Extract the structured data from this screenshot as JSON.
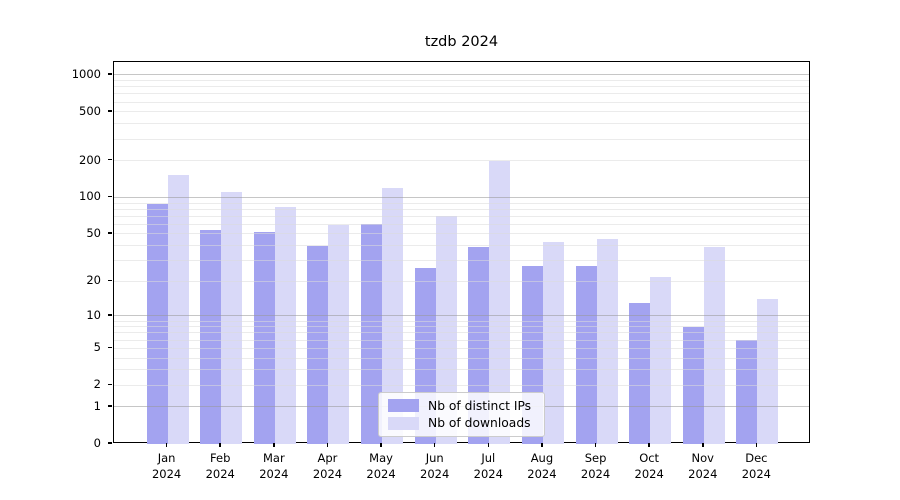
{
  "chart_data": {
    "type": "bar",
    "title": "tzdb 2024",
    "categories": [
      "Jan",
      "Feb",
      "Mar",
      "Apr",
      "May",
      "Jun",
      "Jul",
      "Aug",
      "Sep",
      "Oct",
      "Nov",
      "Dec"
    ],
    "category_year": "2024",
    "series": [
      {
        "name": "Nb of distinct IPs",
        "color": "#a3a3f0",
        "values": [
          88,
          54,
          52,
          40,
          61,
          26,
          39,
          27,
          27,
          13,
          8,
          6
        ]
      },
      {
        "name": "Nb of downloads",
        "color": "#d9d9f8",
        "values": [
          152,
          111,
          84,
          59,
          120,
          70,
          199,
          43,
          45,
          22,
          39,
          14
        ]
      }
    ],
    "y_axis": {
      "scale": "log1p",
      "tick_labels": [
        0,
        1,
        2,
        5,
        10,
        20,
        50,
        100,
        200,
        500,
        1000
      ],
      "major_gridlines": [
        1,
        10,
        100,
        1000
      ],
      "minor_gridlines": [
        2,
        3,
        4,
        5,
        6,
        7,
        8,
        9,
        20,
        30,
        40,
        50,
        60,
        70,
        80,
        90,
        200,
        300,
        400,
        500,
        600,
        700,
        800,
        900
      ],
      "ylim": [
        0,
        1250
      ]
    },
    "x_axis": {
      "slots": 13,
      "first_slot": 1
    },
    "legend": {
      "position": "lower center"
    },
    "colors": {
      "bar_dark": "#a3a3f0",
      "bar_light": "#d9d9f8",
      "major_grid": "#b8b8b8",
      "minor_grid": "#e8e8e8",
      "axis": "#000000",
      "background": "#ffffff"
    }
  }
}
